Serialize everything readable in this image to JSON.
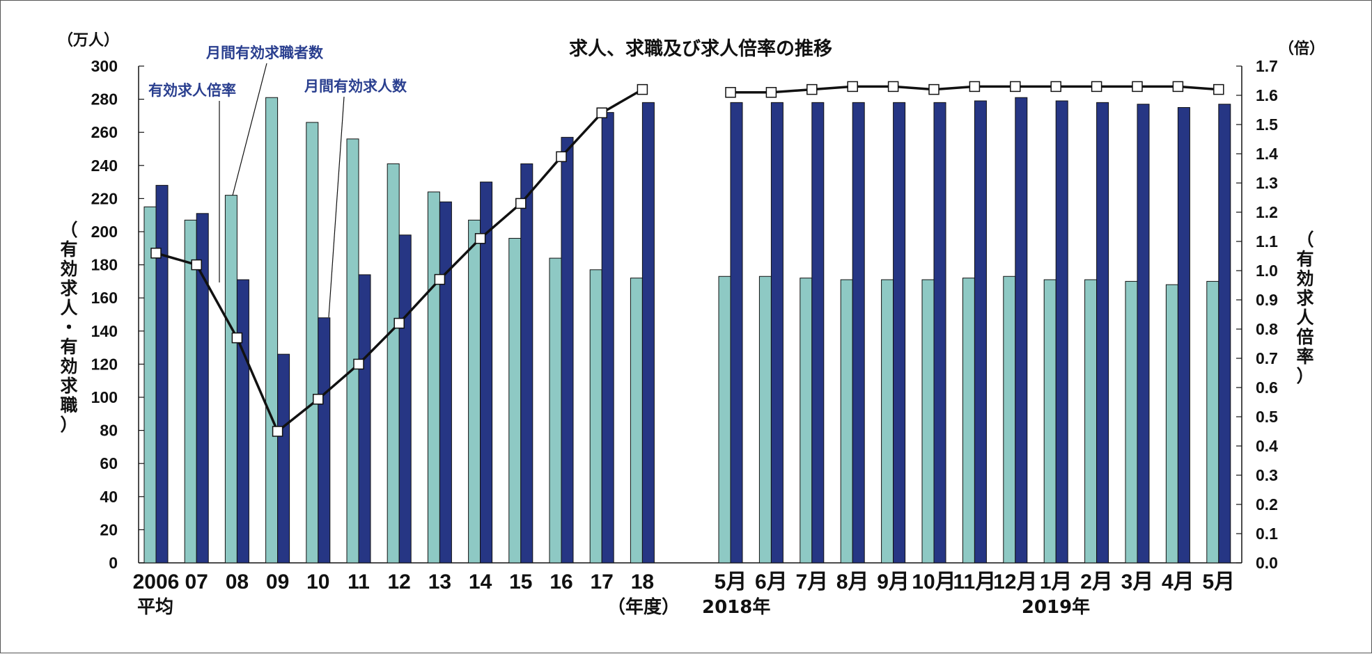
{
  "chart_data": {
    "type": "bar",
    "title": "求人、求職及び求人倍率の推移",
    "y_left_unit": "（万人）",
    "y_right_unit": "（倍）",
    "y_left_label": [
      "（",
      "有",
      "効",
      "求",
      "人",
      "・",
      "有",
      "効",
      "求",
      "職",
      "）"
    ],
    "y_right_label": [
      "（",
      "有",
      "効",
      "求",
      "人",
      "倍",
      "率",
      "）"
    ],
    "y_left_lim": [
      0,
      300
    ],
    "y_left_ticks": [
      "0",
      "20",
      "40",
      "60",
      "80",
      "100",
      "120",
      "140",
      "160",
      "180",
      "200",
      "220",
      "240",
      "260",
      "280",
      "300"
    ],
    "y_right_lim": [
      0,
      1.7
    ],
    "y_right_ticks": [
      "0.0",
      "0.1",
      "0.2",
      "0.3",
      "0.4",
      "0.5",
      "0.6",
      "0.7",
      "0.8",
      "0.9",
      "1.0",
      "1.1",
      "1.2",
      "1.3",
      "1.4",
      "1.5",
      "1.6",
      "1.7"
    ],
    "grid": false,
    "annual": {
      "categories": [
        "2006",
        "07",
        "08",
        "09",
        "10",
        "11",
        "12",
        "13",
        "14",
        "15",
        "16",
        "17",
        "18"
      ],
      "sub_labels": {
        "first": "平均",
        "last": "（年度）"
      },
      "seekers": [
        215,
        207,
        222,
        281,
        266,
        256,
        241,
        224,
        207,
        196,
        184,
        177,
        172
      ],
      "openings": [
        228,
        211,
        171,
        126,
        148,
        174,
        198,
        218,
        230,
        241,
        257,
        272,
        278
      ],
      "ratio": [
        1.06,
        1.02,
        0.77,
        0.45,
        0.56,
        0.68,
        0.82,
        0.97,
        1.11,
        1.23,
        1.39,
        1.54,
        1.62
      ]
    },
    "monthly": {
      "categories": [
        "5月",
        "6月",
        "7月",
        "8月",
        "9月",
        "10月",
        "11月",
        "12月",
        "1月",
        "2月",
        "3月",
        "4月",
        "5月"
      ],
      "year_labels": {
        "first": "2018年",
        "second": "2019年"
      },
      "seekers": [
        173,
        173,
        172,
        171,
        171,
        171,
        172,
        173,
        171,
        171,
        170,
        168,
        170
      ],
      "openings": [
        278,
        278,
        278,
        278,
        278,
        278,
        279,
        281,
        279,
        278,
        277,
        275,
        277
      ],
      "ratio": [
        1.61,
        1.61,
        1.62,
        1.63,
        1.63,
        1.62,
        1.63,
        1.63,
        1.63,
        1.63,
        1.63,
        1.63,
        1.62
      ]
    },
    "series": [
      {
        "name": "月間有効求職者数",
        "color": "#8ec9c4"
      },
      {
        "name": "月間有効求人数",
        "color": "#263684"
      },
      {
        "name": "有効求人倍率",
        "color": "#111111"
      }
    ]
  }
}
